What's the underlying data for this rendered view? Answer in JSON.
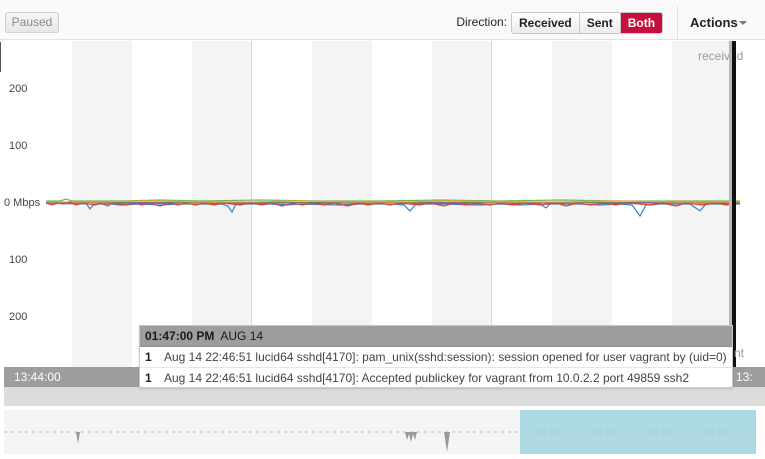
{
  "toolbar": {
    "paused_label": "Paused",
    "direction_label": "Direction:",
    "direction_options": [
      "Received",
      "Sent",
      "Both"
    ],
    "direction_selected": "Both",
    "actions_label": "Actions"
  },
  "chart": {
    "series_label": "received",
    "y_ticks": [
      "200",
      "100",
      "0 Mbps",
      "100",
      "200"
    ],
    "time_start": "13:44:00",
    "time_end_fragment": "13:",
    "cut_label_fragment": "nt",
    "colors": {
      "blue": "#3a82c4",
      "red": "#d6453c",
      "green": "#7bb44a",
      "orange": "#e8a33a",
      "purple": "#8a5ab0",
      "accent": "#c4103c",
      "overview_selection": "#acd9e2"
    }
  },
  "tooltip": {
    "time": "01:47:00 PM",
    "date": "AUG 14",
    "rows": [
      {
        "count": "1",
        "text": "Aug 14 22:46:51 lucid64 sshd[4170]: pam_unix(sshd:session): session opened for user vagrant by (uid=0)"
      },
      {
        "count": "1",
        "text": "Aug 14 22:46:51 lucid64 sshd[4170]: Accepted publickey for vagrant from 10.0.2.2 port 49859 ssh2"
      }
    ]
  }
}
